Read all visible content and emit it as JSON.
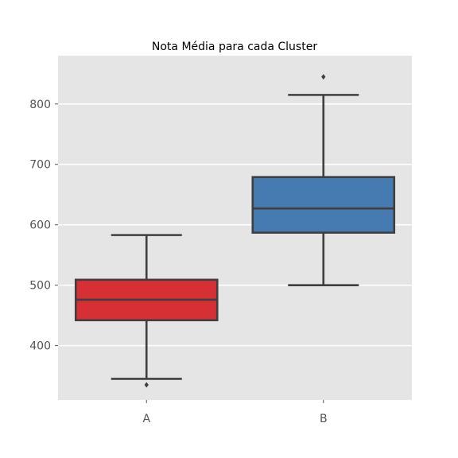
{
  "chart_data": {
    "type": "box",
    "title": "Nota Média para cada Cluster",
    "xlabel": "",
    "ylabel": "",
    "categories": [
      "A",
      "B"
    ],
    "ylim": [
      310,
      880
    ],
    "yticks": [
      400,
      500,
      600,
      700,
      800
    ],
    "grid": true,
    "boxes": [
      {
        "category": "A",
        "color": "#d62f34",
        "whisker_low": 345,
        "q1": 442,
        "median": 476,
        "q3": 509,
        "whisker_high": 583,
        "outliers": [
          335
        ]
      },
      {
        "category": "B",
        "color": "#457bb0",
        "whisker_low": 500,
        "q1": 587,
        "median": 627,
        "q3": 679,
        "whisker_high": 815,
        "outliers": [
          845
        ]
      }
    ]
  },
  "style": {
    "panel_bg": "#e5e5e5",
    "grid_color": "#ffffff",
    "line_color": "#3f3f3f",
    "tick_color": "#555555",
    "title_color": "#000000"
  }
}
